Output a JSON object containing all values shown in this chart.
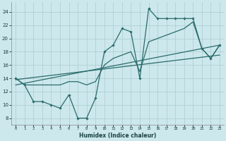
{
  "bg_color": "#cce8ec",
  "grid_color": "#aacccc",
  "line_color": "#2a6b6b",
  "xlabel": "Humidex (Indice chaleur)",
  "xlim": [
    -0.5,
    23.5
  ],
  "ylim": [
    7,
    25.5
  ],
  "yticks": [
    8,
    10,
    12,
    14,
    16,
    18,
    20,
    22,
    24
  ],
  "xticks": [
    0,
    1,
    2,
    3,
    4,
    5,
    6,
    7,
    8,
    9,
    10,
    11,
    12,
    13,
    14,
    15,
    16,
    17,
    18,
    19,
    20,
    21,
    22,
    23
  ],
  "main_x": [
    0,
    1,
    2,
    3,
    4,
    5,
    6,
    7,
    8,
    9,
    10,
    11,
    12,
    13,
    14,
    15,
    16,
    17,
    18,
    19,
    20,
    21,
    22,
    23
  ],
  "main_y": [
    14,
    13,
    10.5,
    10.5,
    10,
    9.5,
    11.5,
    8,
    8,
    11,
    18,
    19,
    21.5,
    21,
    14,
    24.5,
    23,
    23,
    23,
    23,
    23,
    18.5,
    17,
    19
  ],
  "trend1_x": [
    0,
    23
  ],
  "trend1_y": [
    13.0,
    19.0
  ],
  "trend2_x": [
    0,
    23
  ],
  "trend2_y": [
    13.8,
    17.5
  ],
  "smooth_x": [
    0,
    1,
    2,
    3,
    4,
    5,
    6,
    7,
    8,
    9,
    10,
    11,
    12,
    13,
    14,
    15,
    16,
    17,
    18,
    19,
    20,
    21,
    22,
    23
  ],
  "smooth_y": [
    14,
    13,
    13,
    13,
    13,
    13,
    13.5,
    13.5,
    13,
    13.5,
    16,
    17,
    17.5,
    18,
    15,
    19.5,
    20,
    20.5,
    21,
    21.5,
    22.5,
    18.5,
    17,
    19
  ]
}
